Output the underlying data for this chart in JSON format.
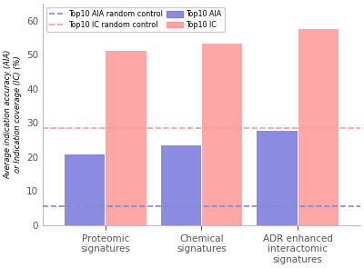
{
  "categories": [
    "Proteomic\nsignatures",
    "Chemical\nsignatures",
    "ADR enhanced\ninteractomic\nsignatures"
  ],
  "aia_values": [
    20.7,
    23.5,
    27.8
  ],
  "ic_values": [
    51.1,
    53.4,
    57.5
  ],
  "aia_random_control": 5.5,
  "ic_random_control": 28.5,
  "aia_color": "#7777dd",
  "ic_color": "#ff8888",
  "aia_random_color": "#8888cc",
  "ic_random_color": "#ff9999",
  "ylabel": "Average indication accuracy (AIA)\nor Indication coverage (IC) (%)",
  "ylim": [
    0,
    65
  ],
  "yticks": [
    0,
    10,
    20,
    30,
    40,
    50,
    60
  ],
  "bar_width": 0.42,
  "legend_labels": [
    "Top10 AIA random control",
    "Top10 IC random control",
    "Top10 AIA",
    "Top10 IC"
  ],
  "background_color": "#ffffff"
}
